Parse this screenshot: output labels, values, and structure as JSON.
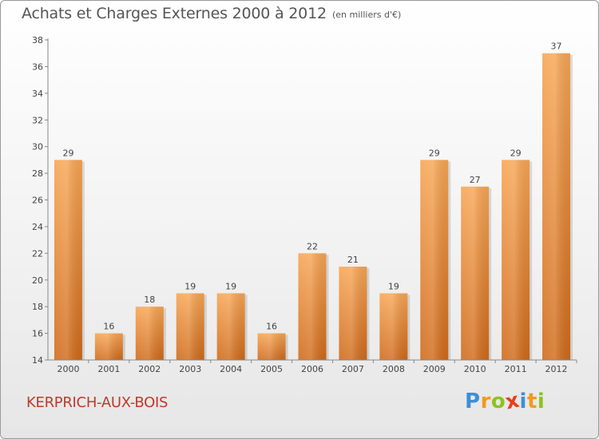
{
  "chart_data": {
    "type": "bar",
    "title": "Achats et Charges Externes 2000 à 2012",
    "subtitle": "(en milliers d'€)",
    "categories": [
      "2000",
      "2001",
      "2002",
      "2003",
      "2004",
      "2005",
      "2006",
      "2007",
      "2008",
      "2009",
      "2010",
      "2011",
      "2012"
    ],
    "values": [
      29,
      16,
      18,
      19,
      19,
      16,
      22,
      21,
      19,
      29,
      27,
      29,
      37
    ],
    "ylim": [
      14,
      38
    ],
    "yticks": [
      14,
      16,
      18,
      20,
      22,
      24,
      26,
      28,
      30,
      32,
      34,
      36,
      38
    ],
    "grid": false,
    "bar_color_top": "#f7a655",
    "bar_color_bottom": "#d06a1a"
  },
  "footer": {
    "place": "KERPRICH-AUX-BOIS",
    "place_color": "#c0392b",
    "brand": {
      "letters": [
        "P",
        "r",
        "o",
        "x",
        "i",
        "t",
        "i"
      ],
      "colors": [
        "#3d8fd6",
        "#f29a1c",
        "#8dc21f",
        "#e8401c",
        "#3d8fd6",
        "#f29a1c",
        "#8dc21f"
      ]
    }
  }
}
